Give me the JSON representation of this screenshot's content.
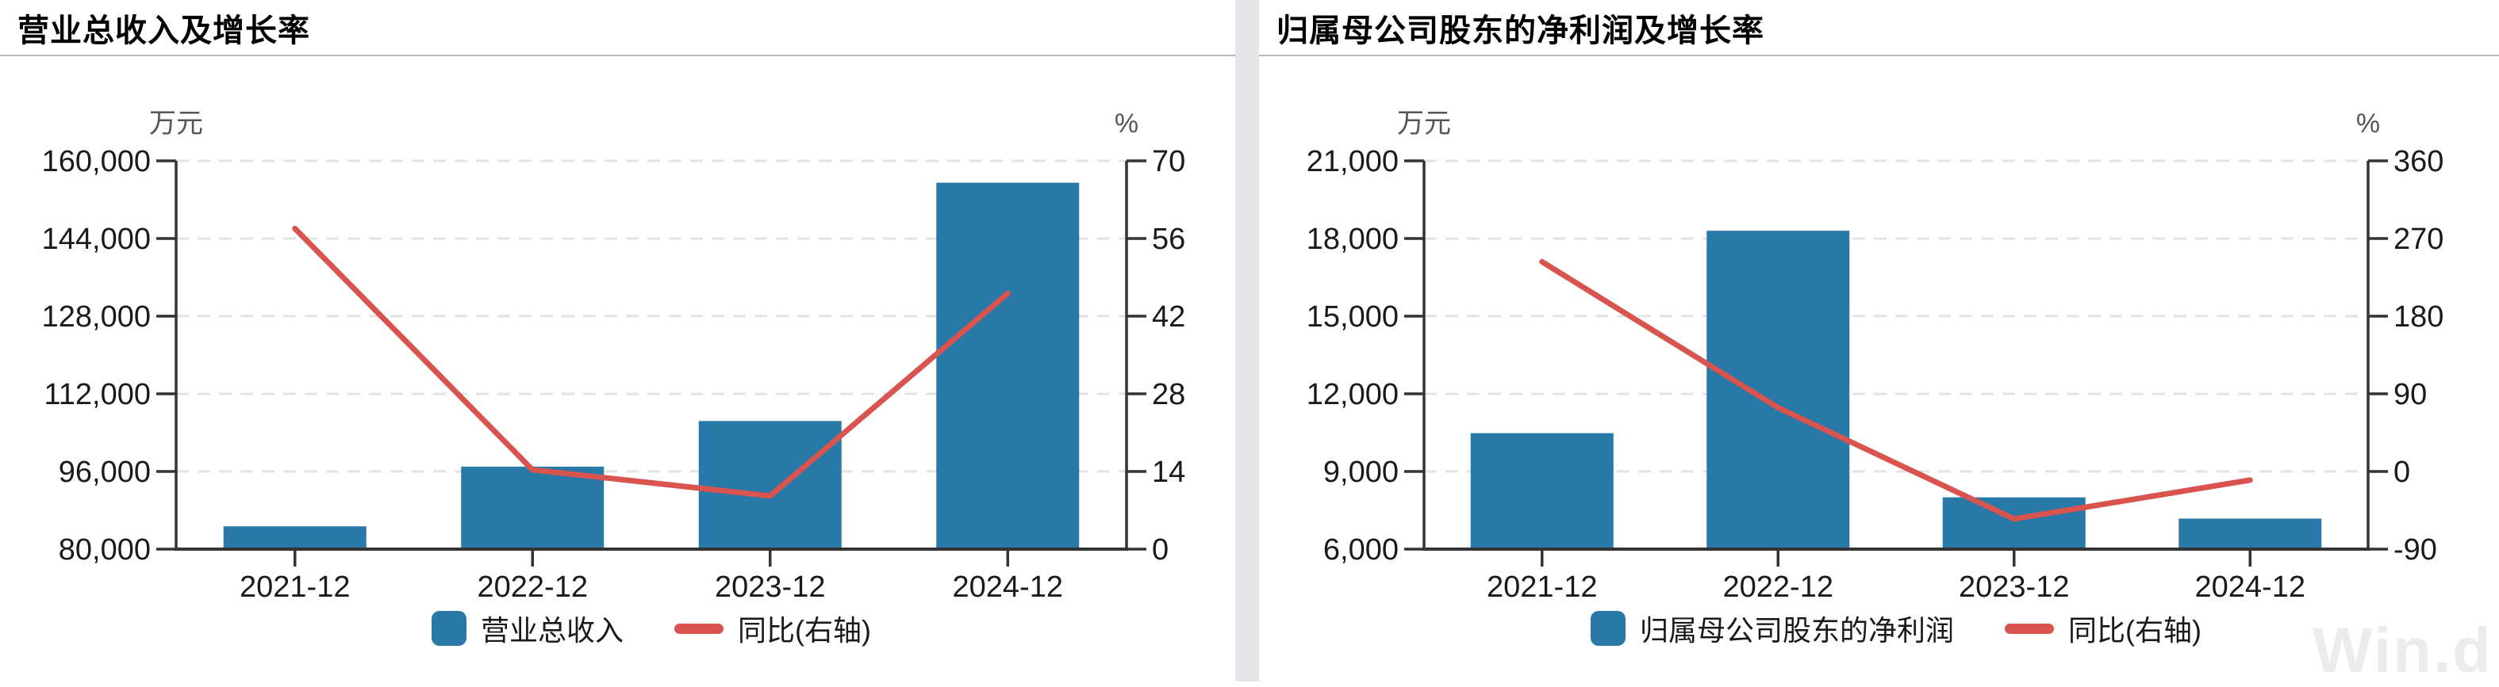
{
  "colors": {
    "bar": "#2878a8",
    "line": "#d9534f"
  },
  "watermark": "Win.d",
  "chart_data": [
    {
      "type": "bar+line",
      "title": "营业总收入及增长率",
      "categories": [
        "2021-12",
        "2022-12",
        "2023-12",
        "2024-12"
      ],
      "series": [
        {
          "name": "营业总收入",
          "type": "bar",
          "axis": "left",
          "unit": "万元",
          "values": [
            84700,
            97000,
            106400,
            155500
          ]
        },
        {
          "name": "同比(右轴)",
          "type": "line",
          "axis": "right",
          "unit": "%",
          "values": [
            57.8,
            14.3,
            9.6,
            46.1
          ]
        }
      ],
      "left_axis": {
        "unit": "万元",
        "min": 80000,
        "max": 160000,
        "step": 16000,
        "ticks": [
          "80,000",
          "96,000",
          "112,000",
          "128,000",
          "144,000",
          "160,000"
        ]
      },
      "right_axis": {
        "unit": "%",
        "min": 0,
        "max": 70,
        "step": 14,
        "ticks": [
          "0",
          "14",
          "28",
          "42",
          "56",
          "70"
        ]
      },
      "grid": "dashed-horizontal",
      "legend_position": "bottom-center"
    },
    {
      "type": "bar+line",
      "title": "归属母公司股东的净利润及增长率",
      "categories": [
        "2021-12",
        "2022-12",
        "2023-12",
        "2024-12"
      ],
      "series": [
        {
          "name": "归属母公司股东的净利润",
          "type": "bar",
          "axis": "left",
          "unit": "万元",
          "values": [
            10480,
            18300,
            8000,
            7180
          ]
        },
        {
          "name": "同比(右轴)",
          "type": "line",
          "axis": "right",
          "unit": "%",
          "values": [
            243,
            74,
            -55,
            -10
          ]
        }
      ],
      "left_axis": {
        "unit": "万元",
        "min": 6000,
        "max": 21000,
        "step": 3000,
        "ticks": [
          "6,000",
          "9,000",
          "12,000",
          "15,000",
          "18,000",
          "21,000"
        ]
      },
      "right_axis": {
        "unit": "%",
        "min": -90,
        "max": 360,
        "step": 90,
        "ticks": [
          "-90",
          "0",
          "90",
          "180",
          "270",
          "360"
        ]
      },
      "grid": "dashed-horizontal",
      "legend_position": "bottom-center"
    }
  ]
}
